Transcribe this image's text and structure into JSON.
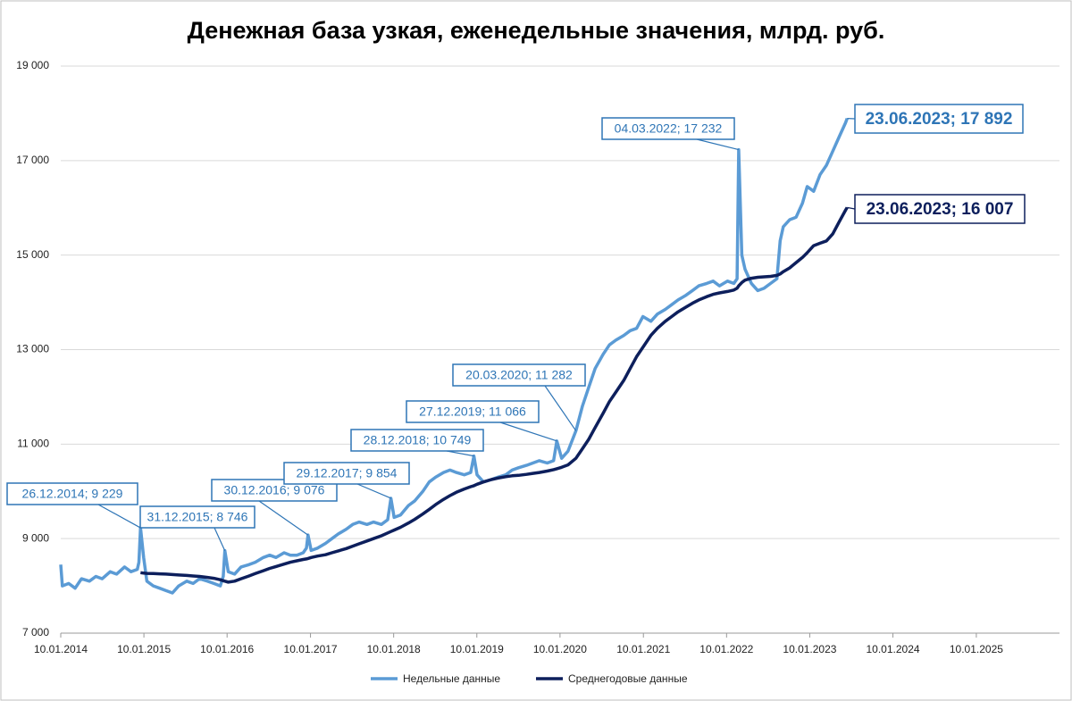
{
  "chart_data": {
    "type": "line",
    "title": "Денежная база узкая, еженедельные значения, млрд. руб.",
    "x": [
      "10.01.2014",
      "17.01.2014",
      "14.02.2014",
      "14.03.2014",
      "11.04.2014",
      "16.05.2014",
      "13.06.2014",
      "11.07.2014",
      "15.08.2014",
      "12.09.2014",
      "17.10.2014",
      "14.11.2014",
      "12.12.2014",
      "19.12.2014",
      "26.12.2014",
      "09.01.2015",
      "23.01.2015",
      "20.02.2015",
      "20.03.2015",
      "17.04.2015",
      "15.05.2015",
      "12.06.2015",
      "17.07.2015",
      "14.08.2015",
      "11.09.2015",
      "16.10.2015",
      "13.11.2015",
      "11.12.2015",
      "24.12.2015",
      "31.12.2015",
      "15.01.2016",
      "12.02.2016",
      "11.03.2016",
      "15.04.2016",
      "13.05.2016",
      "17.06.2016",
      "15.07.2016",
      "12.08.2016",
      "16.09.2016",
      "14.10.2016",
      "11.11.2016",
      "09.12.2016",
      "23.12.2016",
      "30.12.2016",
      "13.01.2017",
      "10.02.2017",
      "17.03.2017",
      "14.04.2017",
      "12.05.2017",
      "16.06.2017",
      "14.07.2017",
      "11.08.2017",
      "15.09.2017",
      "13.10.2017",
      "17.11.2017",
      "15.12.2017",
      "29.12.2017",
      "12.01.2018",
      "09.02.2018",
      "16.03.2018",
      "13.04.2018",
      "18.05.2018",
      "15.06.2018",
      "13.07.2018",
      "17.08.2018",
      "14.09.2018",
      "12.10.2018",
      "16.11.2018",
      "14.12.2018",
      "28.12.2018",
      "11.01.2019",
      "08.02.2019",
      "15.03.2019",
      "12.04.2019",
      "17.05.2019",
      "14.06.2019",
      "12.07.2019",
      "16.08.2019",
      "13.09.2019",
      "11.10.2019",
      "15.11.2019",
      "13.12.2019",
      "27.12.2019",
      "17.01.2020",
      "14.02.2020",
      "20.03.2020",
      "17.04.2020",
      "15.05.2020",
      "12.06.2020",
      "17.07.2020",
      "14.08.2020",
      "11.09.2020",
      "16.10.2020",
      "13.11.2020",
      "11.12.2020",
      "08.01.2021",
      "12.02.2021",
      "12.03.2021",
      "16.04.2021",
      "14.05.2021",
      "11.06.2021",
      "16.07.2021",
      "13.08.2021",
      "10.09.2021",
      "15.10.2021",
      "12.11.2021",
      "10.12.2021",
      "14.01.2022",
      "11.02.2022",
      "25.02.2022",
      "04.03.2022",
      "18.03.2022",
      "01.04.2022",
      "29.04.2022",
      "27.05.2022",
      "24.06.2022",
      "22.07.2022",
      "19.08.2022",
      "02.09.2022",
      "16.09.2022",
      "14.10.2022",
      "11.11.2022",
      "09.12.2022",
      "30.12.2022",
      "27.01.2023",
      "24.02.2023",
      "24.03.2023",
      "21.04.2023",
      "19.05.2023",
      "16.06.2023",
      "23.06.2023"
    ],
    "series": [
      {
        "name": "Недельные данные",
        "color": "#5b9bd5",
        "values": [
          8450,
          8000,
          8050,
          7950,
          8150,
          8100,
          8200,
          8150,
          8300,
          8250,
          8400,
          8300,
          8350,
          8500,
          9229,
          8600,
          8100,
          8000,
          7950,
          7900,
          7850,
          8000,
          8100,
          8050,
          8150,
          8100,
          8050,
          8000,
          8200,
          8746,
          8300,
          8250,
          8400,
          8450,
          8500,
          8600,
          8650,
          8600,
          8700,
          8650,
          8650,
          8700,
          8800,
          9076,
          8750,
          8800,
          8900,
          9000,
          9100,
          9200,
          9300,
          9350,
          9300,
          9350,
          9300,
          9400,
          9854,
          9450,
          9500,
          9700,
          9800,
          10000,
          10200,
          10300,
          10400,
          10450,
          10400,
          10350,
          10400,
          10749,
          10350,
          10200,
          10250,
          10300,
          10350,
          10450,
          10500,
          10550,
          10600,
          10650,
          10600,
          10650,
          11066,
          10700,
          10850,
          11282,
          11800,
          12200,
          12600,
          12900,
          13100,
          13200,
          13300,
          13400,
          13450,
          13700,
          13600,
          13750,
          13850,
          13950,
          14050,
          14150,
          14250,
          14350,
          14400,
          14450,
          14350,
          14450,
          14400,
          14500,
          17232,
          15000,
          14700,
          14400,
          14250,
          14300,
          14400,
          14500,
          15300,
          15600,
          15750,
          15800,
          16100,
          16450,
          16350,
          16700,
          16900,
          17200,
          17500,
          17800,
          17892
        ]
      },
      {
        "name": "Среднегодовые данные",
        "color": "#0d1f5c",
        "values": [
          null,
          null,
          null,
          null,
          null,
          null,
          null,
          null,
          null,
          null,
          null,
          null,
          null,
          null,
          8280,
          8270,
          8265,
          8260,
          8255,
          8250,
          8240,
          8230,
          8220,
          8210,
          8200,
          8180,
          8160,
          8130,
          8110,
          8100,
          8080,
          8100,
          8150,
          8210,
          8260,
          8320,
          8370,
          8410,
          8460,
          8500,
          8530,
          8560,
          8570,
          8580,
          8600,
          8630,
          8660,
          8700,
          8740,
          8790,
          8840,
          8890,
          8950,
          9000,
          9060,
          9120,
          9150,
          9180,
          9240,
          9330,
          9410,
          9520,
          9620,
          9720,
          9830,
          9910,
          9980,
          10050,
          10100,
          10120,
          10150,
          10200,
          10250,
          10280,
          10310,
          10330,
          10340,
          10360,
          10380,
          10400,
          10430,
          10460,
          10480,
          10510,
          10560,
          10700,
          10900,
          11100,
          11350,
          11650,
          11900,
          12100,
          12350,
          12600,
          12850,
          13050,
          13300,
          13450,
          13600,
          13700,
          13800,
          13900,
          13980,
          14050,
          14120,
          14170,
          14200,
          14230,
          14260,
          14300,
          14350,
          14420,
          14470,
          14510,
          14530,
          14540,
          14550,
          14570,
          14600,
          14650,
          14730,
          14840,
          14950,
          15050,
          15200,
          15250,
          15300,
          15450,
          15700,
          15950,
          16007
        ]
      }
    ],
    "xlim": [
      "10.01.2014",
      "10.01.2026"
    ],
    "xticks": [
      "10.01.2014",
      "10.01.2015",
      "10.01.2016",
      "10.01.2017",
      "10.01.2018",
      "10.01.2019",
      "10.01.2020",
      "10.01.2021",
      "10.01.2022",
      "10.01.2023",
      "10.01.2024",
      "10.01.2025"
    ],
    "ylim": [
      7000,
      19000
    ],
    "yticks": [
      {
        "value": 7000,
        "label": "7 000"
      },
      {
        "value": 9000,
        "label": "9 000"
      },
      {
        "value": 11000,
        "label": "11 000"
      },
      {
        "value": 13000,
        "label": "13 000"
      },
      {
        "value": 15000,
        "label": "15 000"
      },
      {
        "value": 17000,
        "label": "17 000"
      },
      {
        "value": 19000,
        "label": "19 000"
      }
    ],
    "grid": true,
    "legend": "bottom",
    "annotations": [
      {
        "text": "26.12.2014; 9 229",
        "x": "26.12.2014",
        "value": 9229
      },
      {
        "text": "31.12.2015; 8 746",
        "x": "31.12.2015",
        "value": 8746
      },
      {
        "text": "30.12.2016; 9 076",
        "x": "30.12.2016",
        "value": 9076
      },
      {
        "text": "29.12.2017; 9 854",
        "x": "29.12.2017",
        "value": 9854
      },
      {
        "text": "28.12.2018; 10 749",
        "x": "28.12.2018",
        "value": 10749
      },
      {
        "text": "27.12.2019; 11 066",
        "x": "27.12.2019",
        "value": 11066
      },
      {
        "text": "20.03.2020; 11 282",
        "x": "20.03.2020",
        "value": 11282
      },
      {
        "text": "04.03.2022; 17 232",
        "x": "04.03.2022",
        "value": 17232
      },
      {
        "text": "23.06.2023; 17 892",
        "x": "23.06.2023",
        "value": 17892
      },
      {
        "text": "23.06.2023; 16 007",
        "x": "23.06.2023",
        "value": 16007
      }
    ]
  }
}
